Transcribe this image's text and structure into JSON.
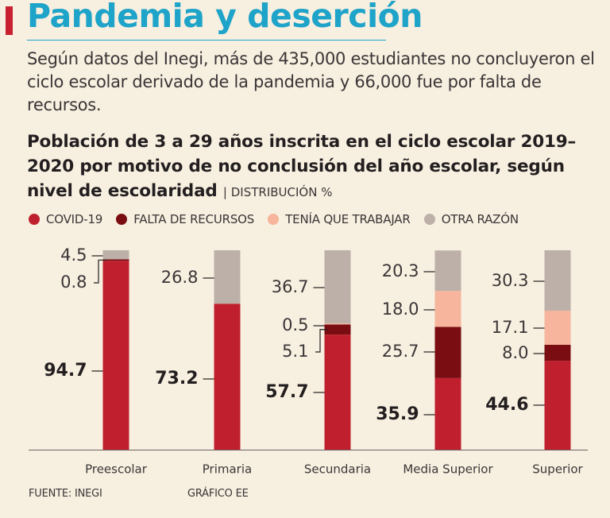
{
  "header": {
    "title": "Pandemia y deserción",
    "intro": "Según datos del Inegi, más de 435,000 estudiantes no concluyeron el ciclo escolar derivado de la pandemia y 66,000 fue por falta de recursos.",
    "subtitle": "Población de 3 a 29 años inscrita en el ciclo escolar 2019–2020 por motivo de no conclusión del año escolar, según nivel de escolaridad",
    "subtitle_unit": "| DISTRIBUCIÓN %"
  },
  "chart_data": {
    "type": "bar",
    "stacked": true,
    "title": "Población de 3 a 29 años inscrita en el ciclo escolar 2019–2020 por motivo de no conclusión del año escolar, según nivel de escolaridad",
    "ylabel": "DISTRIBUCIÓN %",
    "ylim": [
      0,
      100
    ],
    "categories": [
      "Preescolar",
      "Primaria",
      "Secundaria",
      "Media Superior",
      "Superior"
    ],
    "series": [
      {
        "name": "COVID-19",
        "color": "#c0202e",
        "values": [
          94.7,
          73.2,
          57.7,
          35.9,
          44.6
        ],
        "labels": [
          "94.7",
          "73.2",
          "57.7",
          "35.9",
          "44.6"
        ]
      },
      {
        "name": "FALTA DE RECURSOS",
        "color": "#7a0d12",
        "values": [
          0.8,
          0,
          5.1,
          25.7,
          8.0
        ],
        "labels": [
          "0.8",
          null,
          "5.1",
          "25.7",
          "8.0"
        ]
      },
      {
        "name": "TENÍA QUE TRABAJAR",
        "color": "#f6b59c",
        "values": [
          0,
          0,
          0.5,
          18.0,
          17.1
        ],
        "labels": [
          null,
          null,
          "0.5",
          "18.0",
          "17.1"
        ]
      },
      {
        "name": "OTRA RAZÓN",
        "color": "#bcb0a8",
        "values": [
          4.5,
          26.8,
          36.7,
          20.3,
          30.3
        ],
        "labels": [
          "4.5",
          "26.8",
          "36.7",
          "20.3",
          "30.3"
        ]
      }
    ]
  },
  "footer": {
    "source": "FUENTE: INEGI",
    "credit": "GRÁFICO EE"
  }
}
